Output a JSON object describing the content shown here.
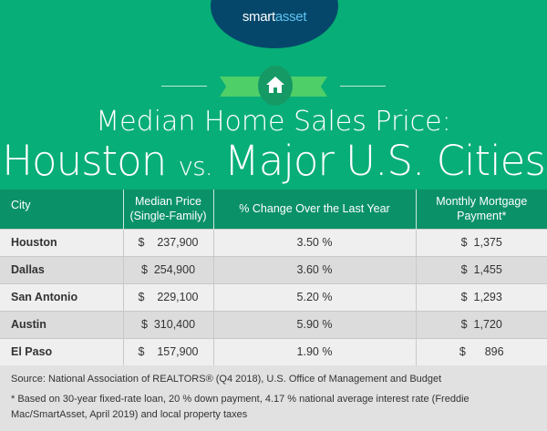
{
  "brand": {
    "logo_text_a": "smart",
    "logo_text_b": "asset",
    "colors": {
      "green": "#08ae77",
      "dark_green": "#0a9168",
      "navy": "#05476b"
    }
  },
  "title": {
    "line1": "Median Home Sales Price:",
    "line2_a": "Houston",
    "line2_vs": "vs.",
    "line2_b": "Major U.S. Cities",
    "icon": "home-icon"
  },
  "table": {
    "headers": [
      "City",
      "Median Price (Single-Family)",
      "% Change Over the Last Year",
      "Monthly Mortgage Payment*"
    ],
    "rows": [
      {
        "city": "Houston",
        "price": "$    237,900",
        "change": "3.50 %",
        "payment": "$  1,375"
      },
      {
        "city": "Dallas",
        "price": "$  254,900",
        "change": "3.60 %",
        "payment": "$  1,455"
      },
      {
        "city": "San Antonio",
        "price": "$    229,100",
        "change": "5.20 %",
        "payment": "$  1,293"
      },
      {
        "city": "Austin",
        "price": "$  310,400",
        "change": "5.90 %",
        "payment": "$  1,720"
      },
      {
        "city": "El Paso",
        "price": "$    157,900",
        "change": "1.90 %",
        "payment": "$      896"
      }
    ]
  },
  "footer": {
    "source": "Source: National Association of REALTORS® (Q4 2018), U.S. Office of Management and Budget",
    "note": "* Based on 30-year fixed-rate loan, 20 % down payment, 4.17 % national average interest rate (Freddie Mac/SmartAsset, April 2019) and local property taxes"
  }
}
